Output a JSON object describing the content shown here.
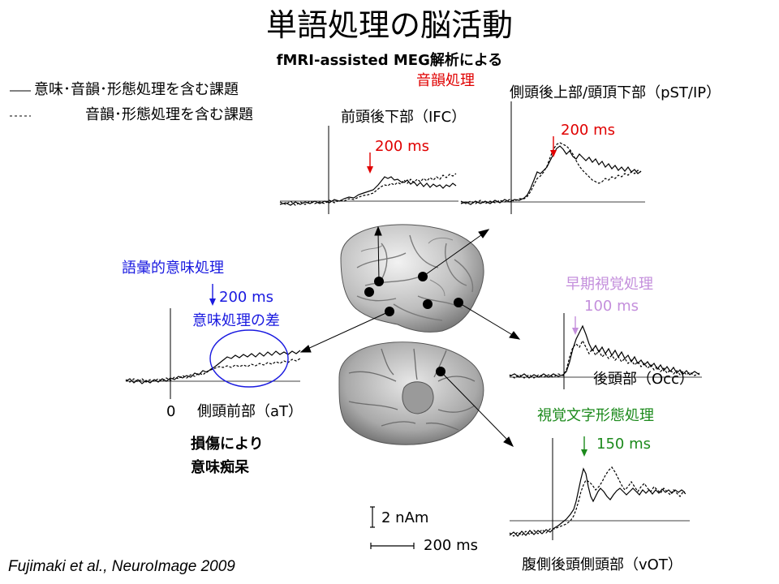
{
  "title": "単語処理の脳活動",
  "subtitle": "fMRI-assisted MEG解析による",
  "legend": {
    "solid": "意味･音韻･形態処理を含む課題",
    "dashed": "音韻･形態処理を含む課題"
  },
  "phonological_label": "音韻処理",
  "regions": {
    "ifc": {
      "name": "前頭後下部（IFC）",
      "latency": "200 ms"
    },
    "pst": {
      "name": "側頭後上部/頭頂下部（pST/IP）",
      "latency": "200 ms"
    },
    "at": {
      "process": "語彙的意味処理",
      "latency": "200 ms",
      "note": "意味処理の差",
      "zero": "0",
      "name": "側頭前部（aT）"
    },
    "occ": {
      "process": "早期視覚処理",
      "latency": "100 ms",
      "name": "後頭部（Occ）"
    },
    "vot": {
      "process": "視覚文字形態処理",
      "latency": "150 ms",
      "name": "腹側後頭側頭部（vOT）"
    }
  },
  "lesion_note_1": "損傷により",
  "lesion_note_2": "意味痴呆",
  "scale": {
    "amplitude": "2 nAm",
    "time": "200 ms"
  },
  "citation": "Fujimaki et al., NeuroImage 2009",
  "colors": {
    "phonological": "#e00000",
    "semantic": "#1a1ae0",
    "early_visual": "#c48fdc",
    "orthographic": "#1c8a1c"
  }
}
